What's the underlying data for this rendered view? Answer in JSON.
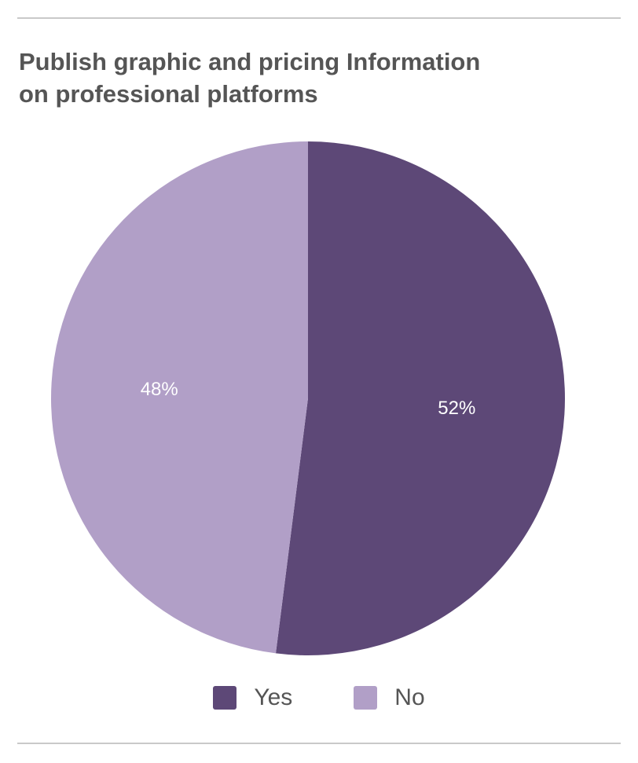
{
  "title_lines": [
    "Publish graphic and pricing Information",
    "on professional platforms"
  ],
  "chart_data": {
    "type": "pie",
    "title": "Publish graphic and pricing Information on professional platforms",
    "categories": [
      "Yes",
      "No"
    ],
    "values": [
      52,
      48
    ],
    "value_labels": [
      "52%",
      "48%"
    ],
    "colors": [
      "#5d4877",
      "#b19fc7"
    ],
    "legend_position": "bottom",
    "start": "12 o'clock, clockwise"
  },
  "legend": [
    {
      "label": "Yes",
      "color": "#5d4877"
    },
    {
      "label": "No",
      "color": "#b19fc7"
    }
  ]
}
